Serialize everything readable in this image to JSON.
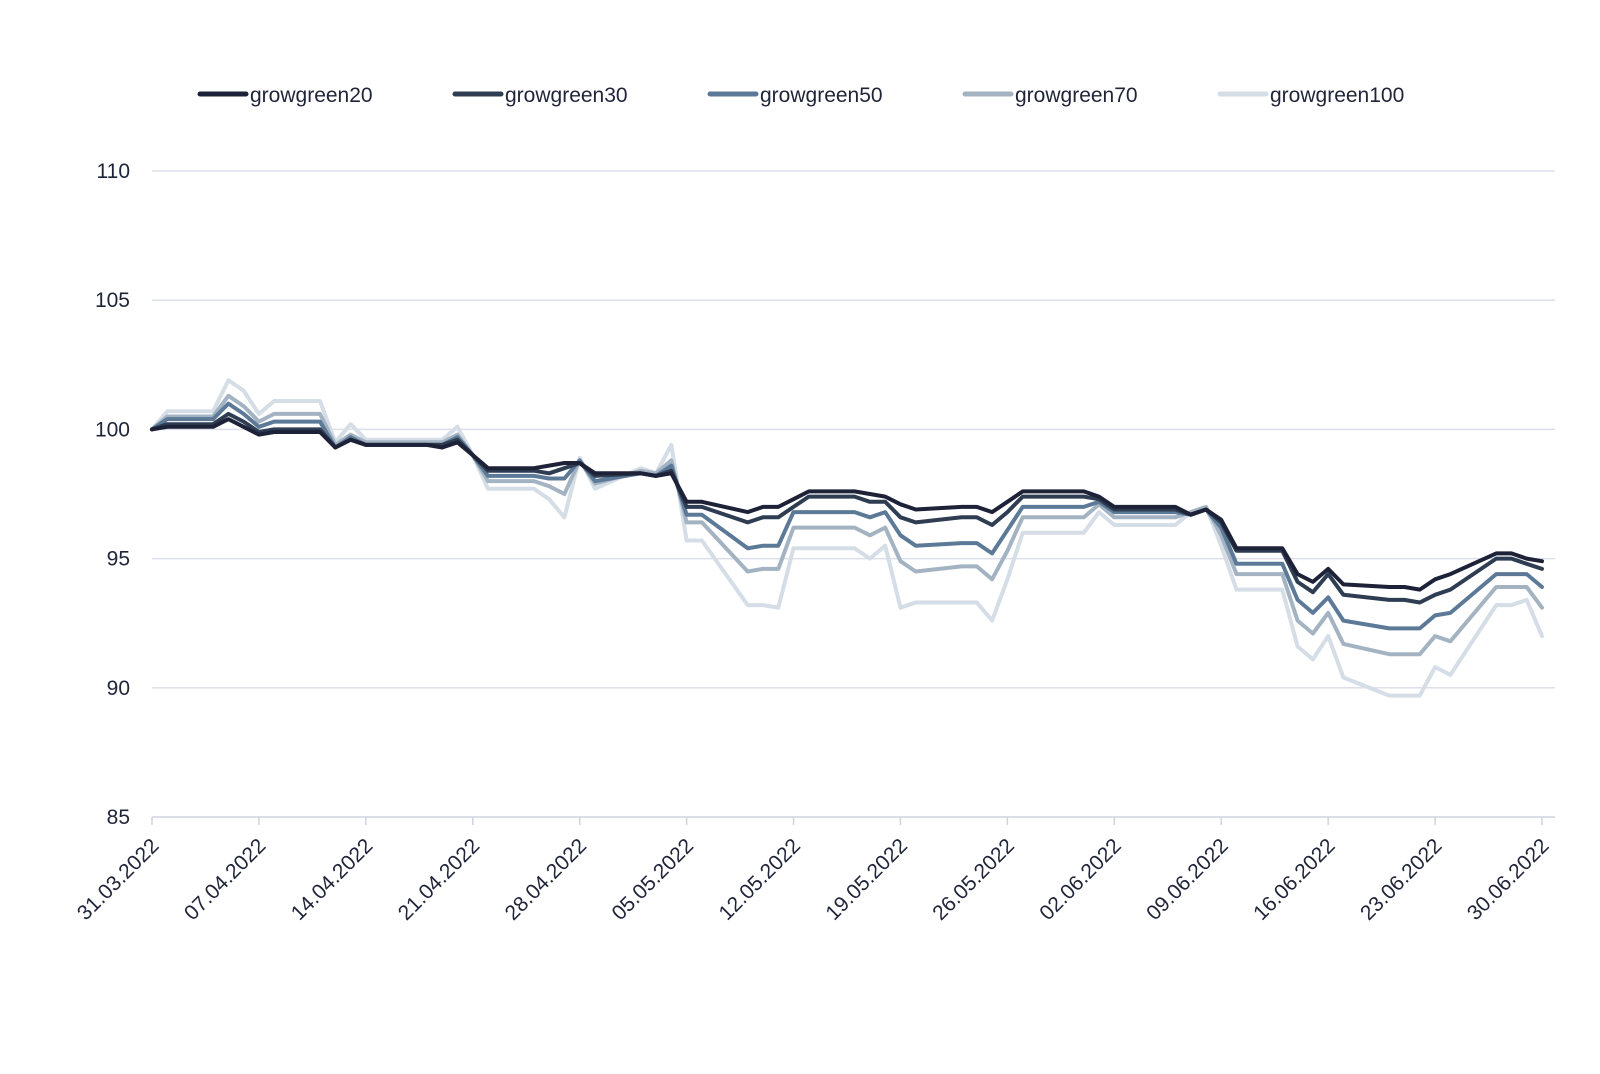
{
  "chart_data": {
    "type": "line",
    "title": "",
    "xlabel": "",
    "ylabel": "",
    "ylim": [
      85,
      110
    ],
    "yticks": [
      85,
      90,
      95,
      100,
      105,
      110
    ],
    "grid": "horizontal",
    "legend_position": "top",
    "x_ticks": [
      "31.03.2022",
      "07.04.2022",
      "14.04.2022",
      "21.04.2022",
      "28.04.2022",
      "05.05.2022",
      "12.05.2022",
      "19.05.2022",
      "26.05.2022",
      "02.06.2022",
      "09.06.2022",
      "16.06.2022",
      "23.06.2022",
      "30.06.2022"
    ],
    "x": [
      "31.03.2022",
      "01.04.2022",
      "04.04.2022",
      "05.04.2022",
      "06.04.2022",
      "07.04.2022",
      "08.04.2022",
      "11.04.2022",
      "12.04.2022",
      "13.04.2022",
      "14.04.2022",
      "15.04.2022",
      "18.04.2022",
      "19.04.2022",
      "20.04.2022",
      "21.04.2022",
      "22.04.2022",
      "25.04.2022",
      "26.04.2022",
      "27.04.2022",
      "28.04.2022",
      "29.04.2022",
      "02.05.2022",
      "03.05.2022",
      "04.05.2022",
      "05.05.2022",
      "06.05.2022",
      "09.05.2022",
      "10.05.2022",
      "11.05.2022",
      "12.05.2022",
      "13.05.2022",
      "16.05.2022",
      "17.05.2022",
      "18.05.2022",
      "19.05.2022",
      "20.05.2022",
      "23.05.2022",
      "24.05.2022",
      "25.05.2022",
      "26.05.2022",
      "27.05.2022",
      "30.05.2022",
      "31.05.2022",
      "01.06.2022",
      "02.06.2022",
      "03.06.2022",
      "06.06.2022",
      "07.06.2022",
      "08.06.2022",
      "09.06.2022",
      "10.06.2022",
      "13.06.2022",
      "14.06.2022",
      "15.06.2022",
      "16.06.2022",
      "17.06.2022",
      "20.06.2022",
      "21.06.2022",
      "22.06.2022",
      "23.06.2022",
      "24.06.2022",
      "27.06.2022",
      "28.06.2022",
      "29.06.2022",
      "30.06.2022"
    ],
    "series": [
      {
        "name": "growgreen20",
        "color": "#1e2238",
        "values": [
          100.0,
          100.1,
          100.1,
          100.4,
          100.1,
          99.8,
          99.9,
          99.9,
          99.3,
          99.6,
          99.4,
          99.4,
          99.4,
          99.3,
          99.5,
          99.0,
          98.5,
          98.5,
          98.6,
          98.7,
          98.7,
          98.3,
          98.3,
          98.2,
          98.3,
          97.2,
          97.2,
          96.8,
          97.0,
          97.0,
          97.3,
          97.6,
          97.6,
          97.5,
          97.4,
          97.1,
          96.9,
          97.0,
          97.0,
          96.8,
          97.2,
          97.6,
          97.6,
          97.6,
          97.4,
          97.0,
          97.0,
          97.0,
          96.7,
          96.9,
          96.5,
          95.4,
          95.4,
          94.4,
          94.1,
          94.6,
          94.0,
          93.9,
          93.9,
          93.8,
          94.2,
          94.4,
          95.2,
          95.2,
          95.0,
          94.9
        ]
      },
      {
        "name": "growgreen30",
        "color": "#2f3d52",
        "values": [
          100.0,
          100.2,
          100.2,
          100.6,
          100.3,
          99.9,
          100.0,
          100.0,
          99.3,
          99.6,
          99.4,
          99.4,
          99.4,
          99.4,
          99.6,
          99.0,
          98.4,
          98.4,
          98.3,
          98.5,
          98.7,
          98.2,
          98.3,
          98.2,
          98.4,
          97.0,
          97.0,
          96.4,
          96.6,
          96.6,
          97.0,
          97.4,
          97.4,
          97.2,
          97.2,
          96.6,
          96.4,
          96.6,
          96.6,
          96.3,
          96.8,
          97.4,
          97.4,
          97.4,
          97.3,
          96.9,
          96.9,
          96.9,
          96.7,
          96.9,
          96.4,
          95.3,
          95.3,
          94.1,
          93.7,
          94.4,
          93.6,
          93.4,
          93.4,
          93.3,
          93.6,
          93.8,
          95.0,
          95.0,
          94.8,
          94.6
        ]
      },
      {
        "name": "growgreen50",
        "color": "#5c7a98",
        "values": [
          100.0,
          100.4,
          100.4,
          101.0,
          100.6,
          100.1,
          100.3,
          100.3,
          99.3,
          99.7,
          99.4,
          99.4,
          99.4,
          99.4,
          99.7,
          99.0,
          98.2,
          98.2,
          98.1,
          98.1,
          98.8,
          98.0,
          98.3,
          98.2,
          98.6,
          96.7,
          96.7,
          95.4,
          95.5,
          95.5,
          96.8,
          96.8,
          96.8,
          96.6,
          96.8,
          95.9,
          95.5,
          95.6,
          95.6,
          95.2,
          96.1,
          97.0,
          97.0,
          97.0,
          97.2,
          96.8,
          96.8,
          96.8,
          96.7,
          96.9,
          96.2,
          94.8,
          94.8,
          93.4,
          92.9,
          93.5,
          92.6,
          92.3,
          92.3,
          92.3,
          92.8,
          92.9,
          94.4,
          94.4,
          94.4,
          93.9
        ]
      },
      {
        "name": "growgreen70",
        "color": "#a4b3c2",
        "values": [
          100.0,
          100.5,
          100.5,
          101.3,
          100.9,
          100.3,
          100.6,
          100.6,
          99.4,
          99.8,
          99.5,
          99.5,
          99.5,
          99.5,
          99.8,
          99.0,
          98.0,
          98.0,
          97.8,
          97.5,
          98.8,
          97.9,
          98.4,
          98.3,
          98.8,
          96.4,
          96.4,
          94.5,
          94.6,
          94.6,
          96.2,
          96.2,
          96.2,
          95.9,
          96.2,
          94.9,
          94.5,
          94.7,
          94.7,
          94.2,
          95.3,
          96.6,
          96.6,
          96.6,
          97.1,
          96.6,
          96.6,
          96.6,
          96.8,
          97.0,
          95.9,
          94.4,
          94.4,
          92.6,
          92.1,
          92.9,
          91.7,
          91.3,
          91.3,
          91.3,
          92.0,
          91.8,
          93.9,
          93.9,
          93.9,
          93.1
        ]
      },
      {
        "name": "growgreen100",
        "color": "#d5dde6",
        "values": [
          100.0,
          100.7,
          100.7,
          101.9,
          101.5,
          100.6,
          101.1,
          101.1,
          99.5,
          100.2,
          99.6,
          99.6,
          99.6,
          99.6,
          100.1,
          99.0,
          97.7,
          97.7,
          97.3,
          96.6,
          98.9,
          97.7,
          98.5,
          98.3,
          99.4,
          95.7,
          95.7,
          93.2,
          93.2,
          93.1,
          95.4,
          95.4,
          95.4,
          95.0,
          95.5,
          93.1,
          93.3,
          93.3,
          93.3,
          92.6,
          94.2,
          96.0,
          96.0,
          96.0,
          96.8,
          96.3,
          96.3,
          96.3,
          96.8,
          97.0,
          95.5,
          93.8,
          93.8,
          91.6,
          91.1,
          92.0,
          90.4,
          89.7,
          89.7,
          89.7,
          90.8,
          90.5,
          93.2,
          93.2,
          93.4,
          92.0
        ]
      }
    ]
  }
}
